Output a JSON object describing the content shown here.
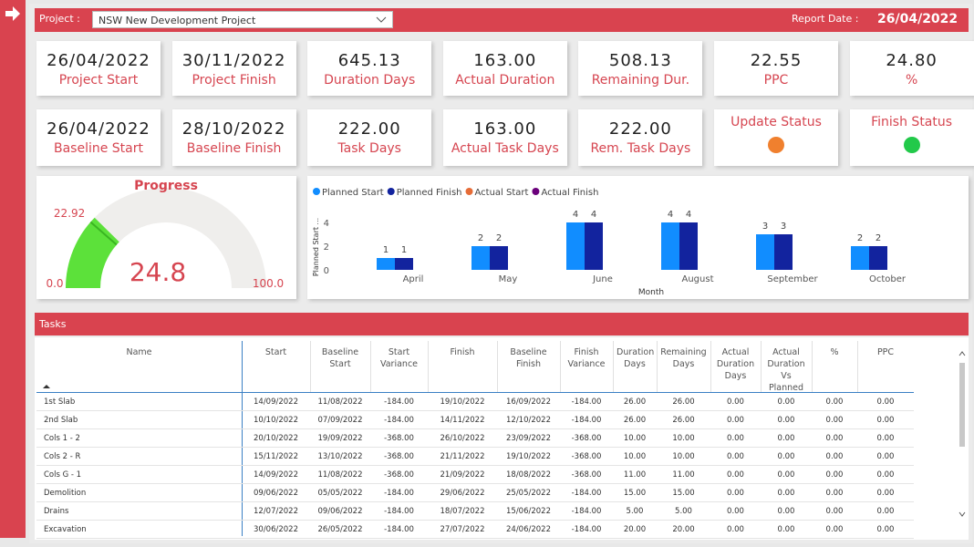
{
  "header": {
    "project_label": "Project :",
    "project": "NSW New Development Project",
    "report_date_label": "Report Date :",
    "report_date": "26/04/2022"
  },
  "cards": [
    {
      "value": "26/04/2022",
      "label": "Project Start"
    },
    {
      "value": "30/11/2022",
      "label": "Project Finish"
    },
    {
      "value": "645.13",
      "label": "Duration Days"
    },
    {
      "value": "163.00",
      "label": "Actual Duration"
    },
    {
      "value": "508.13",
      "label": "Remaining Dur."
    },
    {
      "value": "22.55",
      "label": "PPC"
    },
    {
      "value": "24.80",
      "label": "%"
    },
    {
      "value": "26/04/2022",
      "label": "Baseline Start"
    },
    {
      "value": "28/10/2022",
      "label": "Baseline Finish"
    },
    {
      "value": "222.00",
      "label": "Task Days"
    },
    {
      "value": "163.00",
      "label": "Actual Task Days"
    },
    {
      "value": "222.00",
      "label": "Rem. Task Days"
    },
    {
      "label": "Update Status",
      "status_color": "#f0802e"
    },
    {
      "label": "Finish Status",
      "status_color": "#22c94a"
    }
  ],
  "chart_data": [
    {
      "type": "gauge",
      "title": "Progress",
      "value": 24.8,
      "target": 22.92,
      "min": {
        "value": 0,
        "label": "0.0"
      },
      "max": {
        "value": 100,
        "label": "100.0"
      },
      "color": "#5ce13a",
      "track_color": "#efeeec"
    },
    {
      "type": "bar",
      "x_label": "Month",
      "y_label": "Planned Start ...",
      "categories": [
        "April",
        "May",
        "June",
        "August",
        "September",
        "October"
      ],
      "series": [
        {
          "name": "Planned Start",
          "color": "#118dff",
          "values": [
            1,
            2,
            4,
            4,
            3,
            2
          ]
        },
        {
          "name": "Planned Finish",
          "color": "#12239e",
          "values": [
            1,
            2,
            4,
            4,
            3,
            2
          ]
        },
        {
          "name": "Actual Start",
          "color": "#e66c37",
          "values": [
            null,
            null,
            null,
            null,
            null,
            null
          ]
        },
        {
          "name": "Actual Finish",
          "color": "#6b007b",
          "values": [
            null,
            null,
            null,
            null,
            null,
            null
          ]
        }
      ],
      "ylim": [
        0,
        4
      ],
      "yticks": [
        0,
        2,
        4
      ],
      "grid": false
    }
  ],
  "tasks": {
    "title": "Tasks",
    "columns": [
      "Name",
      "Start",
      "Baseline Start",
      "Start Variance",
      "Finish",
      "Baseline Finish",
      "Finish Variance",
      "Duration Days",
      "Remaining Days",
      "Actual Duration Days",
      "Actual Duration Vs Planned",
      "%",
      "PPC"
    ],
    "rows": [
      [
        "1st Slab",
        "14/09/2022",
        "11/08/2022",
        "-184.00",
        "19/10/2022",
        "16/09/2022",
        "-184.00",
        "26.00",
        "26.00",
        "0.00",
        "0.00",
        "0.00",
        "0.00"
      ],
      [
        "2nd Slab",
        "10/10/2022",
        "07/09/2022",
        "-184.00",
        "14/11/2022",
        "12/10/2022",
        "-184.00",
        "26.00",
        "26.00",
        "0.00",
        "0.00",
        "0.00",
        "0.00"
      ],
      [
        "Cols 1 - 2",
        "20/10/2022",
        "19/09/2022",
        "-368.00",
        "26/10/2022",
        "23/09/2022",
        "-368.00",
        "10.00",
        "10.00",
        "0.00",
        "0.00",
        "0.00",
        "0.00"
      ],
      [
        "Cols 2 - R",
        "15/11/2022",
        "13/10/2022",
        "-368.00",
        "21/11/2022",
        "19/10/2022",
        "-368.00",
        "10.00",
        "10.00",
        "0.00",
        "0.00",
        "0.00",
        "0.00"
      ],
      [
        "Cols G - 1",
        "14/09/2022",
        "11/08/2022",
        "-368.00",
        "21/09/2022",
        "18/08/2022",
        "-368.00",
        "11.00",
        "11.00",
        "0.00",
        "0.00",
        "0.00",
        "0.00"
      ],
      [
        "Demolition",
        "09/06/2022",
        "05/05/2022",
        "-184.00",
        "29/06/2022",
        "25/05/2022",
        "-184.00",
        "15.00",
        "15.00",
        "0.00",
        "0.00",
        "0.00",
        "0.00"
      ],
      [
        "Drains",
        "12/07/2022",
        "09/06/2022",
        "-184.00",
        "18/07/2022",
        "15/06/2022",
        "-184.00",
        "5.00",
        "5.00",
        "0.00",
        "0.00",
        "0.00",
        "0.00"
      ],
      [
        "Excavation",
        "30/06/2022",
        "26/05/2022",
        "-184.00",
        "27/07/2022",
        "24/06/2022",
        "-184.00",
        "20.00",
        "20.00",
        "0.00",
        "0.00",
        "0.00",
        "0.00"
      ]
    ]
  }
}
